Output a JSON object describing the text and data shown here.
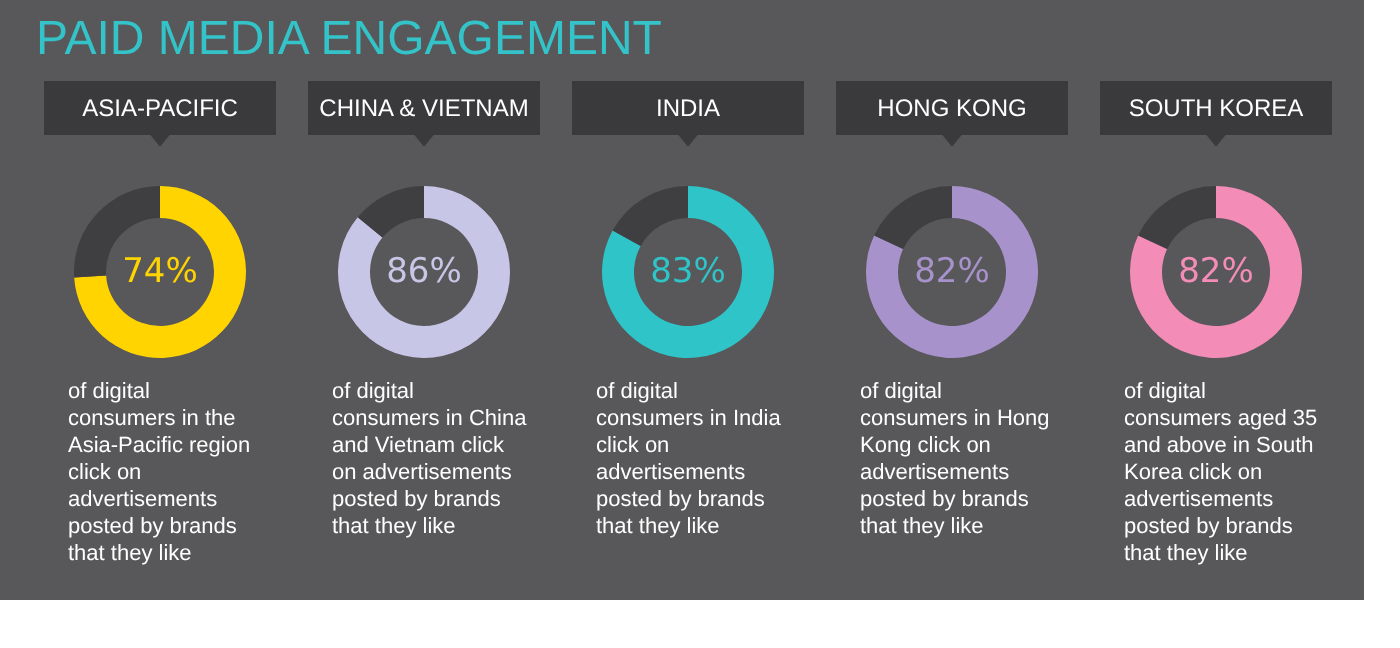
{
  "chart_data": [
    {
      "type": "other",
      "title": "PAID MEDIA ENGAGEMENT"
    },
    {
      "type": "donut",
      "title": "ASIA-PACIFIC",
      "categories": [
        null,
        null
      ],
      "values": [
        74,
        26
      ],
      "colors": [
        "#ffd400",
        "#3f3f41"
      ],
      "annotations": [
        "74%",
        "of digital consumers in the Asia-Pacific region click on advertisements posted by brands that they like"
      ]
    },
    {
      "type": "donut",
      "title": "CHINA & VIETNAM",
      "categories": [
        null,
        null
      ],
      "values": [
        86,
        14
      ],
      "colors": [
        "#c8c6e6",
        "#3f3f41"
      ],
      "annotations": [
        "86%",
        "of digital consumers in China and Vietnam click on advertisements posted by brands that they like"
      ]
    },
    {
      "type": "donut",
      "title": "INDIA",
      "categories": [
        null,
        null
      ],
      "values": [
        83,
        17
      ],
      "colors": [
        "#2ec4c8",
        "#3f3f41"
      ],
      "annotations": [
        "83%",
        "of digital consumers in India click on advertisements posted by brands that they like"
      ]
    },
    {
      "type": "donut",
      "title": "HONG KONG",
      "categories": [
        null,
        null
      ],
      "values": [
        82,
        18
      ],
      "colors": [
        "#a892cc",
        "#3f3f41"
      ],
      "annotations": [
        "82%",
        "of digital consumers in Hong Kong click on advertisements posted by brands that they like"
      ]
    },
    {
      "type": "donut",
      "title": "SOUTH KOREA",
      "categories": [
        null,
        null
      ],
      "values": [
        82,
        18
      ],
      "colors": [
        "#f48cb8",
        "#3f3f41"
      ],
      "annotations": [
        "82%",
        "of digital consumers aged 35 and above in South Korea click on advertisements posted by brands that they like"
      ]
    }
  ]
}
